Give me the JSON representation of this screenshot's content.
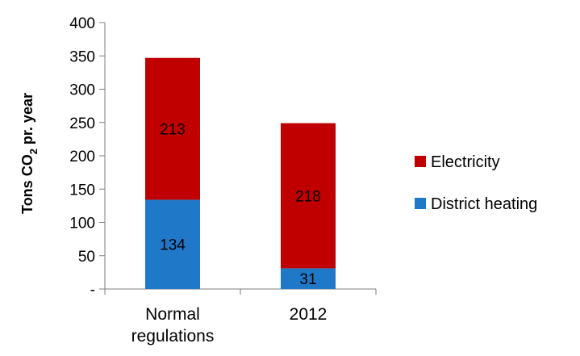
{
  "chart_data": {
    "type": "bar",
    "stacked": true,
    "categories": [
      [
        "Normal",
        "regulations"
      ],
      [
        "2012"
      ]
    ],
    "series": [
      {
        "name": "District heating",
        "values": [
          134,
          31
        ],
        "color": "#1f78c8"
      },
      {
        "name": "Electricity",
        "values": [
          213,
          218
        ],
        "color": "#c00000"
      }
    ],
    "ylabel_parts": [
      "Tons CO",
      "2",
      " pr. year"
    ],
    "yticks": [
      "-",
      "50",
      "100",
      "150",
      "200",
      "250",
      "300",
      "350",
      "400"
    ],
    "ylim": [
      0,
      400
    ],
    "grid": false,
    "legend": {
      "position": "right",
      "order": [
        "Electricity",
        "District heating"
      ]
    }
  }
}
